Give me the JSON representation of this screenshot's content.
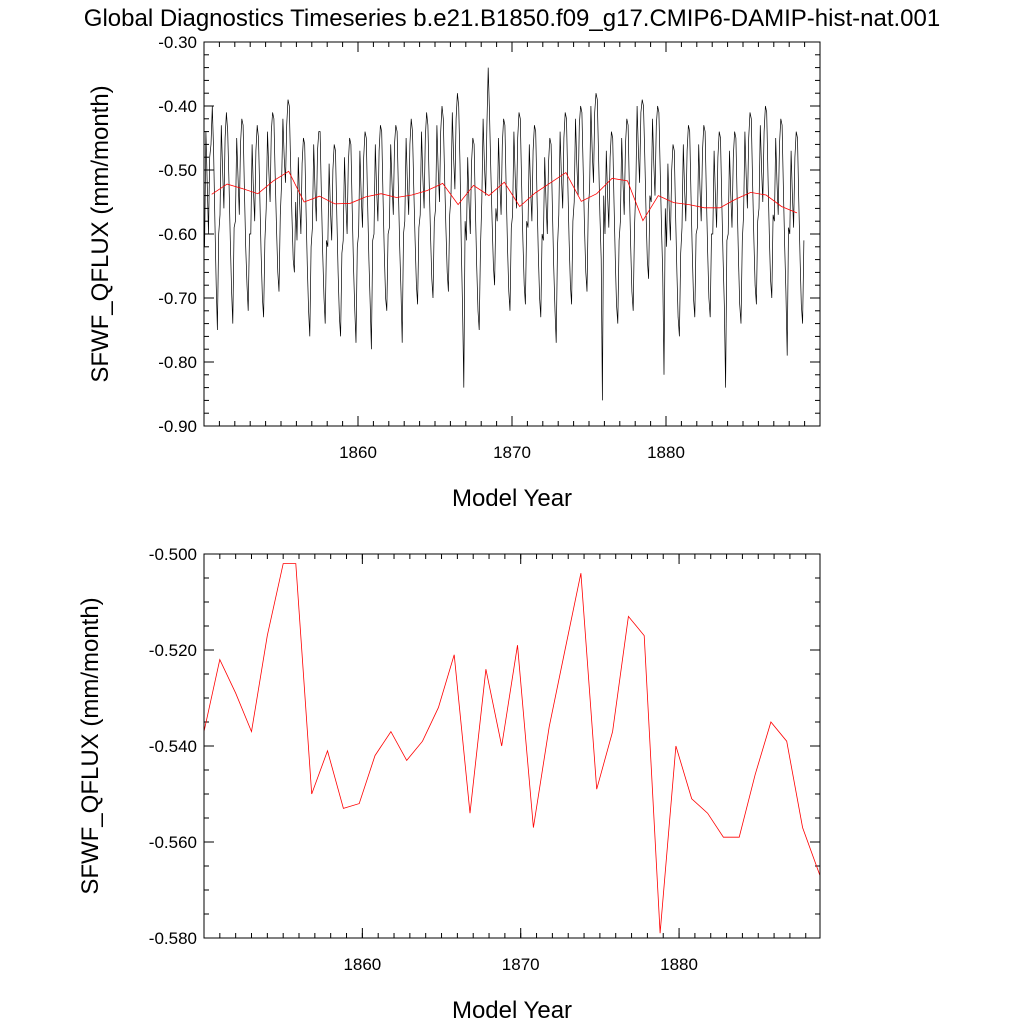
{
  "title": "Global Diagnostics Timeseries b.e21.B1850.f09_g17.CMIP6-DAMIP-hist-nat.001",
  "colors": {
    "monthly": "#000000",
    "annual": "#ff0000"
  },
  "chart_data": [
    {
      "type": "line",
      "xlabel": "Model Year",
      "ylabel": "SFWF_QFLUX (mm/month)",
      "xlim": [
        1850,
        1890
      ],
      "ylim": [
        -0.9,
        -0.3
      ],
      "xticks": [
        1860,
        1870,
        1880
      ],
      "xtick_labels": [
        "1860",
        "1870",
        "1880"
      ],
      "yticks": [
        -0.9,
        -0.8,
        -0.7,
        -0.6,
        -0.5,
        -0.4,
        -0.3
      ],
      "ytick_labels": [
        "-0.90",
        "-0.80",
        "-0.70",
        "-0.60",
        "-0.50",
        "-0.40",
        "-0.30"
      ],
      "grid": false,
      "series": [
        {
          "kind": "monthly",
          "x_start": 1850.04,
          "x_step": 0.08333,
          "values": [
            -0.62,
            -0.44,
            -0.52,
            -0.6,
            -0.48,
            -0.46,
            -0.4,
            -0.47,
            -0.58,
            -0.68,
            -0.75,
            -0.6,
            -0.57,
            -0.43,
            -0.5,
            -0.56,
            -0.45,
            -0.41,
            -0.44,
            -0.52,
            -0.61,
            -0.69,
            -0.74,
            -0.59,
            -0.58,
            -0.45,
            -0.51,
            -0.57,
            -0.46,
            -0.42,
            -0.43,
            -0.53,
            -0.62,
            -0.68,
            -0.72,
            -0.6,
            -0.6,
            -0.46,
            -0.53,
            -0.58,
            -0.47,
            -0.43,
            -0.45,
            -0.54,
            -0.63,
            -0.7,
            -0.73,
            -0.61,
            -0.56,
            -0.44,
            -0.5,
            -0.55,
            -0.44,
            -0.41,
            -0.42,
            -0.51,
            -0.59,
            -0.66,
            -0.69,
            -0.57,
            -0.52,
            -0.42,
            -0.48,
            -0.52,
            -0.43,
            -0.39,
            -0.4,
            -0.49,
            -0.57,
            -0.64,
            -0.66,
            -0.55,
            -0.61,
            -0.48,
            -0.55,
            -0.6,
            -0.49,
            -0.45,
            -0.46,
            -0.56,
            -0.65,
            -0.72,
            -0.76,
            -0.62,
            -0.59,
            -0.46,
            -0.53,
            -0.58,
            -0.47,
            -0.44,
            -0.44,
            -0.54,
            -0.63,
            -0.7,
            -0.74,
            -0.61,
            -0.62,
            -0.49,
            -0.56,
            -0.61,
            -0.5,
            -0.46,
            -0.47,
            -0.57,
            -0.66,
            -0.73,
            -0.76,
            -0.63,
            -0.61,
            -0.48,
            -0.55,
            -0.6,
            -0.49,
            -0.45,
            -0.46,
            -0.56,
            -0.65,
            -0.72,
            -0.77,
            -0.62,
            -0.6,
            -0.47,
            -0.54,
            -0.59,
            -0.48,
            -0.44,
            -0.45,
            -0.55,
            -0.64,
            -0.71,
            -0.78,
            -0.61,
            -0.6,
            -0.46,
            -0.53,
            -0.58,
            -0.47,
            -0.43,
            -0.44,
            -0.54,
            -0.63,
            -0.7,
            -0.72,
            -0.6,
            -0.59,
            -0.46,
            -0.52,
            -0.57,
            -0.46,
            -0.43,
            -0.44,
            -0.53,
            -0.62,
            -0.69,
            -0.77,
            -0.6,
            -0.58,
            -0.45,
            -0.52,
            -0.57,
            -0.46,
            -0.42,
            -0.44,
            -0.53,
            -0.61,
            -0.68,
            -0.71,
            -0.59,
            -0.57,
            -0.44,
            -0.51,
            -0.56,
            -0.45,
            -0.41,
            -0.43,
            -0.52,
            -0.6,
            -0.67,
            -0.7,
            -0.58,
            -0.56,
            -0.43,
            -0.5,
            -0.55,
            -0.44,
            -0.4,
            -0.42,
            -0.51,
            -0.59,
            -0.66,
            -0.69,
            -0.57,
            -0.54,
            -0.41,
            -0.48,
            -0.53,
            -0.42,
            -0.38,
            -0.4,
            -0.49,
            -0.62,
            -0.72,
            -0.84,
            -0.58,
            -0.61,
            -0.48,
            -0.55,
            -0.6,
            -0.49,
            -0.45,
            -0.46,
            -0.56,
            -0.65,
            -0.72,
            -0.75,
            -0.62,
            -0.55,
            -0.42,
            -0.49,
            -0.54,
            -0.43,
            -0.34,
            -0.41,
            -0.5,
            -0.58,
            -0.65,
            -0.68,
            -0.56,
            -0.58,
            -0.45,
            -0.52,
            -0.57,
            -0.46,
            -0.42,
            -0.43,
            -0.53,
            -0.62,
            -0.69,
            -0.72,
            -0.59,
            -0.57,
            -0.44,
            -0.51,
            -0.56,
            -0.45,
            -0.41,
            -0.42,
            -0.52,
            -0.61,
            -0.68,
            -0.71,
            -0.58,
            -0.59,
            -0.46,
            -0.53,
            -0.58,
            -0.47,
            -0.43,
            -0.44,
            -0.54,
            -0.63,
            -0.7,
            -0.73,
            -0.6,
            -0.61,
            -0.48,
            -0.55,
            -0.6,
            -0.49,
            -0.45,
            -0.46,
            -0.56,
            -0.65,
            -0.72,
            -0.77,
            -0.62,
            -0.57,
            -0.44,
            -0.51,
            -0.56,
            -0.45,
            -0.41,
            -0.42,
            -0.52,
            -0.61,
            -0.68,
            -0.71,
            -0.58,
            -0.55,
            -0.42,
            -0.49,
            -0.54,
            -0.43,
            -0.4,
            -0.41,
            -0.5,
            -0.59,
            -0.66,
            -0.69,
            -0.56,
            -0.53,
            -0.4,
            -0.47,
            -0.52,
            -0.41,
            -0.38,
            -0.39,
            -0.48,
            -0.57,
            -0.64,
            -0.86,
            -0.54,
            -0.6,
            -0.47,
            -0.54,
            -0.59,
            -0.48,
            -0.44,
            -0.45,
            -0.55,
            -0.64,
            -0.71,
            -0.74,
            -0.61,
            -0.58,
            -0.45,
            -0.52,
            -0.57,
            -0.46,
            -0.42,
            -0.43,
            -0.53,
            -0.62,
            -0.69,
            -0.72,
            -0.59,
            -0.53,
            -0.4,
            -0.47,
            -0.52,
            -0.41,
            -0.39,
            -0.4,
            -0.48,
            -0.57,
            -0.64,
            -0.67,
            -0.54,
            -0.55,
            -0.42,
            -0.49,
            -0.54,
            -0.43,
            -0.4,
            -0.41,
            -0.5,
            -0.59,
            -0.66,
            -0.82,
            -0.56,
            -0.62,
            -0.49,
            -0.56,
            -0.61,
            -0.5,
            -0.46,
            -0.47,
            -0.57,
            -0.66,
            -0.73,
            -0.76,
            -0.63,
            -0.59,
            -0.46,
            -0.53,
            -0.58,
            -0.47,
            -0.43,
            -0.44,
            -0.54,
            -0.63,
            -0.7,
            -0.73,
            -0.6,
            -0.59,
            -0.46,
            -0.53,
            -0.58,
            -0.47,
            -0.43,
            -0.44,
            -0.54,
            -0.63,
            -0.7,
            -0.73,
            -0.6,
            -0.6,
            -0.47,
            -0.54,
            -0.59,
            -0.48,
            -0.44,
            -0.45,
            -0.55,
            -0.64,
            -0.71,
            -0.84,
            -0.61,
            -0.6,
            -0.47,
            -0.54,
            -0.59,
            -0.48,
            -0.44,
            -0.45,
            -0.55,
            -0.64,
            -0.71,
            -0.74,
            -0.61,
            -0.57,
            -0.44,
            -0.51,
            -0.56,
            -0.45,
            -0.41,
            -0.42,
            -0.52,
            -0.61,
            -0.68,
            -0.71,
            -0.58,
            -0.56,
            -0.43,
            -0.5,
            -0.55,
            -0.44,
            -0.4,
            -0.41,
            -0.51,
            -0.6,
            -0.67,
            -0.7,
            -0.57,
            -0.58,
            -0.45,
            -0.52,
            -0.57,
            -0.46,
            -0.42,
            -0.43,
            -0.53,
            -0.62,
            -0.69,
            -0.79,
            -0.59,
            -0.6,
            -0.47,
            -0.54,
            -0.59,
            -0.48,
            -0.44,
            -0.45,
            -0.55,
            -0.64,
            -0.71,
            -0.74,
            -0.61
          ]
        },
        {
          "kind": "annual",
          "x": [
            1850.5,
            1851.5,
            1852.5,
            1853.5,
            1854.5,
            1855.5,
            1856.5,
            1857.5,
            1858.5,
            1859.5,
            1860.5,
            1861.5,
            1862.5,
            1863.5,
            1864.5,
            1865.5,
            1866.5,
            1867.5,
            1868.5,
            1869.5,
            1870.5,
            1871.5,
            1872.5,
            1873.5,
            1874.5,
            1875.5,
            1876.5,
            1877.5,
            1878.5,
            1879.5,
            1880.5,
            1881.5,
            1882.5,
            1883.5,
            1884.5,
            1885.5,
            1886.5,
            1887.5,
            1888.5
          ],
          "values": [
            -0.538,
            -0.522,
            -0.529,
            -0.537,
            -0.517,
            -0.502,
            -0.55,
            -0.541,
            -0.553,
            -0.552,
            -0.542,
            -0.537,
            -0.543,
            -0.539,
            -0.532,
            -0.521,
            -0.554,
            -0.524,
            -0.54,
            -0.519,
            -0.557,
            -0.536,
            -0.52,
            -0.504,
            -0.549,
            -0.537,
            -0.513,
            -0.517,
            -0.579,
            -0.54,
            -0.551,
            -0.554,
            -0.559,
            -0.559,
            -0.546,
            -0.535,
            -0.539,
            -0.557,
            -0.567
          ]
        }
      ]
    },
    {
      "type": "line",
      "xlabel": "Model Year",
      "ylabel": "SFWF_QFLUX (mm/month)",
      "xlim": [
        1850,
        1888.9
      ],
      "ylim": [
        -0.58,
        -0.5
      ],
      "xticks": [
        1860,
        1870,
        1880
      ],
      "xtick_labels": [
        "1860",
        "1870",
        "1880"
      ],
      "yticks": [
        -0.58,
        -0.56,
        -0.54,
        -0.52,
        -0.5
      ],
      "ytick_labels": [
        "-0.580",
        "-0.560",
        "-0.540",
        "-0.520",
        "-0.500"
      ],
      "grid": false,
      "series": [
        {
          "kind": "annual",
          "x": [
            1850.0,
            1851.0,
            1852.0,
            1853.0,
            1854.0,
            1855.0,
            1855.8,
            1856.8,
            1857.8,
            1858.8,
            1859.8,
            1860.8,
            1861.8,
            1862.8,
            1863.8,
            1864.8,
            1865.8,
            1866.8,
            1867.8,
            1868.8,
            1869.8,
            1870.8,
            1871.8,
            1872.8,
            1873.8,
            1874.8,
            1875.8,
            1876.8,
            1877.8,
            1878.8,
            1879.8,
            1880.8,
            1881.8,
            1882.8,
            1883.8,
            1884.8,
            1885.8,
            1886.8,
            1887.8,
            1888.9
          ],
          "values": [
            -0.537,
            -0.522,
            -0.529,
            -0.537,
            -0.517,
            -0.502,
            -0.502,
            -0.55,
            -0.541,
            -0.553,
            -0.552,
            -0.542,
            -0.537,
            -0.543,
            -0.539,
            -0.532,
            -0.521,
            -0.554,
            -0.524,
            -0.54,
            -0.519,
            -0.557,
            -0.536,
            -0.52,
            -0.504,
            -0.549,
            -0.537,
            -0.513,
            -0.517,
            -0.579,
            -0.54,
            -0.551,
            -0.554,
            -0.559,
            -0.559,
            -0.546,
            -0.535,
            -0.539,
            -0.557,
            -0.567
          ]
        }
      ]
    }
  ]
}
